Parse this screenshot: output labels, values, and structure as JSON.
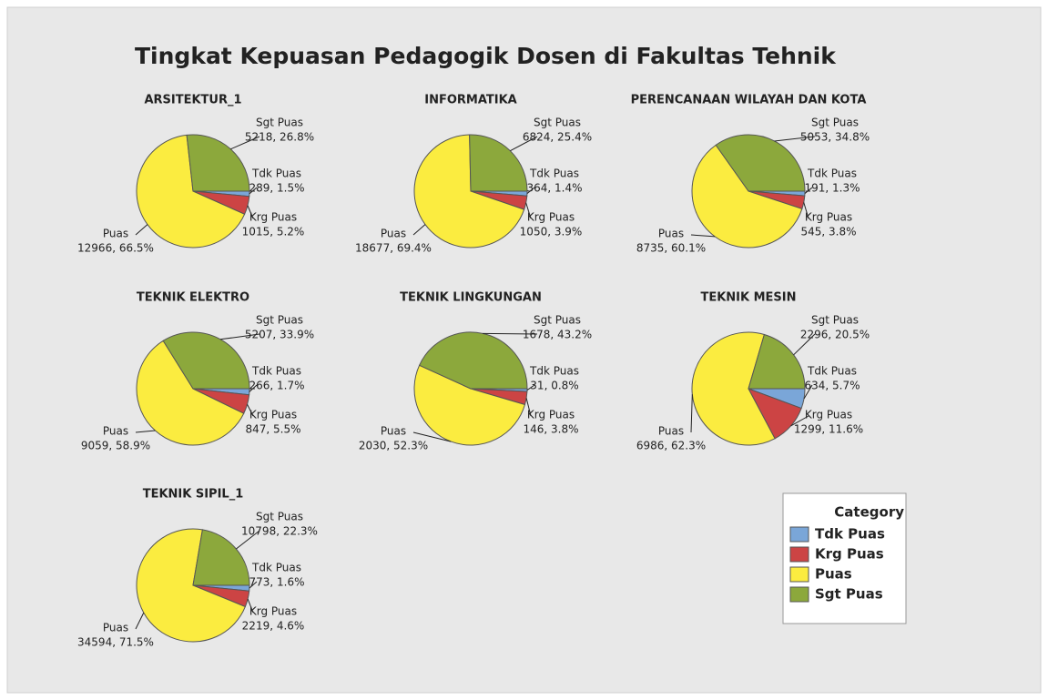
{
  "title": "Tingkat Kepuasan Pedagogik Dosen di Fakultas Tehnik",
  "legend": {
    "title": "Category",
    "position": "lower right"
  },
  "chart_data": [
    {
      "type": "pie",
      "title": "ARSITEKTUR_1",
      "categories": [
        "Tdk Puas",
        "Krg Puas",
        "Puas",
        "Sgt Puas"
      ],
      "colors": [
        "#7aa6d8",
        "#cc4444",
        "#fbec40",
        "#8ca83c"
      ],
      "values": [
        289,
        1015,
        12966,
        5218
      ],
      "value_labels": [
        "289, 1.5%",
        "1015, 5.2%",
        "12966, 66.5%",
        "5218, 26.8%"
      ]
    },
    {
      "type": "pie",
      "title": "INFORMATIKA",
      "categories": [
        "Tdk Puas",
        "Krg Puas",
        "Puas",
        "Sgt Puas"
      ],
      "colors": [
        "#7aa6d8",
        "#cc4444",
        "#fbec40",
        "#8ca83c"
      ],
      "values": [
        364,
        1050,
        18677,
        6824
      ],
      "value_labels": [
        "364, 1.4%",
        "1050, 3.9%",
        "18677, 69.4%",
        "6824, 25.4%"
      ]
    },
    {
      "type": "pie",
      "title": "PERENCANAAN WILAYAH DAN KOTA",
      "categories": [
        "Tdk Puas",
        "Krg Puas",
        "Puas",
        "Sgt Puas"
      ],
      "colors": [
        "#7aa6d8",
        "#cc4444",
        "#fbec40",
        "#8ca83c"
      ],
      "values": [
        191,
        545,
        8735,
        5053
      ],
      "value_labels": [
        "191, 1.3%",
        "545, 3.8%",
        "8735, 60.1%",
        "5053, 34.8%"
      ]
    },
    {
      "type": "pie",
      "title": "TEKNIK ELEKTRO",
      "categories": [
        "Tdk Puas",
        "Krg Puas",
        "Puas",
        "Sgt Puas"
      ],
      "colors": [
        "#7aa6d8",
        "#cc4444",
        "#fbec40",
        "#8ca83c"
      ],
      "values": [
        266,
        847,
        9059,
        5207
      ],
      "value_labels": [
        "266, 1.7%",
        "847, 5.5%",
        "9059, 58.9%",
        "5207, 33.9%"
      ]
    },
    {
      "type": "pie",
      "title": "TEKNIK LINGKUNGAN",
      "categories": [
        "Tdk Puas",
        "Krg Puas",
        "Puas",
        "Sgt Puas"
      ],
      "colors": [
        "#7aa6d8",
        "#cc4444",
        "#fbec40",
        "#8ca83c"
      ],
      "values": [
        31,
        146,
        2030,
        1678
      ],
      "value_labels": [
        "31, 0.8%",
        "146, 3.8%",
        "2030, 52.3%",
        "1678, 43.2%"
      ]
    },
    {
      "type": "pie",
      "title": "TEKNIK MESIN",
      "categories": [
        "Tdk Puas",
        "Krg Puas",
        "Puas",
        "Sgt Puas"
      ],
      "colors": [
        "#7aa6d8",
        "#cc4444",
        "#fbec40",
        "#8ca83c"
      ],
      "values": [
        634,
        1299,
        6986,
        2296
      ],
      "value_labels": [
        "634, 5.7%",
        "1299, 11.6%",
        "6986, 62.3%",
        "2296, 20.5%"
      ]
    },
    {
      "type": "pie",
      "title": "TEKNIK SIPIL_1",
      "categories": [
        "Tdk Puas",
        "Krg Puas",
        "Puas",
        "Sgt Puas"
      ],
      "colors": [
        "#7aa6d8",
        "#cc4444",
        "#fbec40",
        "#8ca83c"
      ],
      "values": [
        773,
        2219,
        34594,
        10798
      ],
      "value_labels": [
        "773, 1.6%",
        "2219, 4.6%",
        "34594, 71.5%",
        "10798, 22.3%"
      ]
    }
  ]
}
